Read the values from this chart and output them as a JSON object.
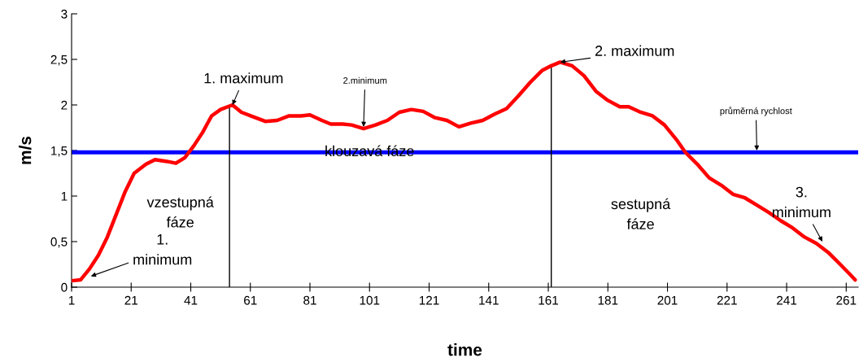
{
  "chart_data": {
    "type": "line",
    "xlabel": "time",
    "ylabel": "m/s",
    "xlim": [
      1,
      265
    ],
    "xticks": [
      1,
      21,
      41,
      61,
      81,
      101,
      121,
      141,
      161,
      181,
      201,
      221,
      241,
      261
    ],
    "ylim": [
      0,
      3
    ],
    "yticks": [
      0,
      {
        "value": 0.5,
        "label": "0,5"
      },
      1,
      {
        "value": 1.5,
        "label": "1,5"
      },
      2,
      {
        "value": 2.5,
        "label": "2,5"
      },
      3
    ],
    "grid": false,
    "marker": "none",
    "line_style": "solid",
    "series": [
      {
        "color": "#ff0000",
        "x": [
          1,
          4,
          7,
          10,
          13,
          16,
          19,
          22,
          26,
          29,
          33,
          36,
          39,
          42,
          45,
          48,
          51,
          55,
          58,
          62,
          66,
          70,
          74,
          78,
          81,
          85,
          88,
          92,
          95,
          99,
          103,
          107,
          111,
          115,
          119,
          123,
          127,
          131,
          135,
          139,
          143,
          147,
          151,
          155,
          159,
          162,
          165,
          169,
          173,
          177,
          181,
          185,
          188,
          192,
          196,
          200,
          204,
          207,
          211,
          215,
          219,
          223,
          227,
          231,
          235,
          239,
          243,
          247,
          251,
          255,
          259,
          262,
          264
        ],
        "values": [
          0.07,
          0.08,
          0.2,
          0.35,
          0.55,
          0.8,
          1.05,
          1.25,
          1.35,
          1.4,
          1.38,
          1.36,
          1.42,
          1.55,
          1.7,
          1.88,
          1.95,
          2.0,
          1.92,
          1.87,
          1.82,
          1.83,
          1.88,
          1.88,
          1.89,
          1.83,
          1.79,
          1.79,
          1.78,
          1.74,
          1.78,
          1.83,
          1.92,
          1.95,
          1.93,
          1.86,
          1.83,
          1.76,
          1.8,
          1.83,
          1.9,
          1.96,
          2.1,
          2.25,
          2.38,
          2.43,
          2.47,
          2.43,
          2.32,
          2.15,
          2.05,
          1.98,
          1.98,
          1.92,
          1.88,
          1.78,
          1.62,
          1.48,
          1.35,
          1.2,
          1.12,
          1.02,
          0.98,
          0.9,
          0.82,
          0.73,
          0.65,
          0.55,
          0.48,
          0.38,
          0.25,
          0.15,
          0.08
        ]
      }
    ],
    "ref_lines": [
      {
        "axis": "y",
        "value": 1.48,
        "color": "#0000ff"
      },
      {
        "axis": "x",
        "value": 54,
        "color": "#000000"
      },
      {
        "axis": "x",
        "value": 162,
        "color": "#000000"
      }
    ],
    "annotations": [
      {
        "text": "1. maximum",
        "x": 55,
        "y": 2.0
      },
      {
        "text": "2.minimum",
        "x": 99,
        "y": 1.76
      },
      {
        "text": "2. maximum",
        "x": 165,
        "y": 2.47
      },
      {
        "text": "1.\nminimum",
        "x": 7.5,
        "y": 0.12
      },
      {
        "text": "3.\nminimum",
        "x": 253,
        "y": 0.5
      },
      {
        "text": "průměrná rychlost",
        "x": 231,
        "y": 1.5
      },
      "vzestupná\nfáze",
      "klouzavá fáze",
      "sestupná\nfáze"
    ]
  }
}
